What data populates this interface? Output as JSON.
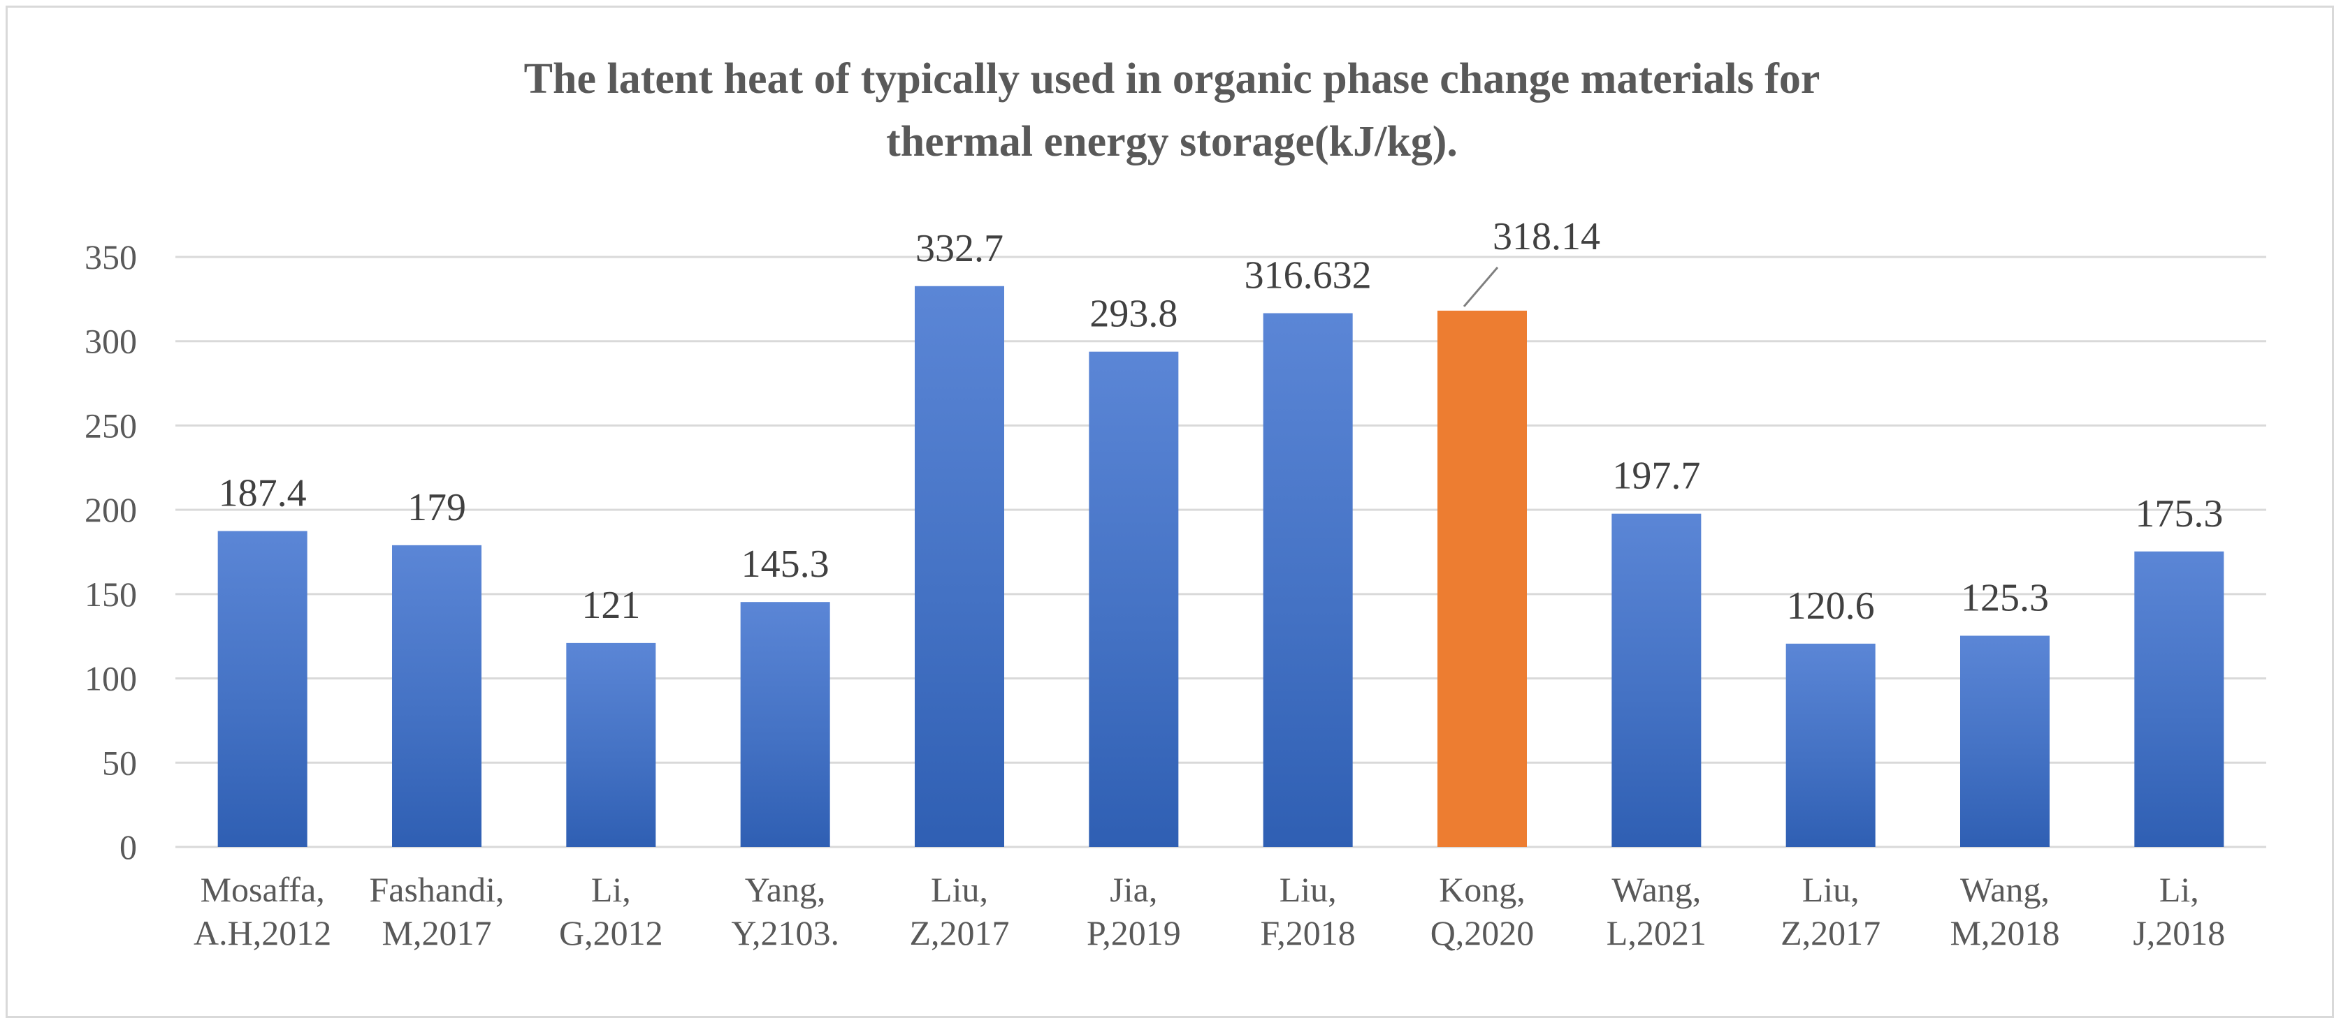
{
  "chart_data": {
    "type": "bar",
    "title": [
      "The latent heat of typically used in organic phase change materials for",
      "thermal energy storage(kJ/kg)."
    ],
    "xlabel": "",
    "ylabel": "",
    "ylim": [
      0,
      350
    ],
    "yticks": [
      0,
      50,
      100,
      150,
      200,
      250,
      300,
      350
    ],
    "grid": true,
    "legend": "none",
    "categories": [
      [
        "Mosaffa,",
        "A.H,2012"
      ],
      [
        "Fashandi,",
        "M,2017"
      ],
      [
        "Li,",
        "G,2012"
      ],
      [
        "Yang,",
        "Y,2103."
      ],
      [
        "Liu,",
        "Z,2017"
      ],
      [
        "Jia,",
        "P,2019"
      ],
      [
        "Liu,",
        "F,2018"
      ],
      [
        "Kong,",
        "Q,2020"
      ],
      [
        "Wang,",
        "L,2021"
      ],
      [
        "Liu,",
        "Z,2017"
      ],
      [
        "Wang,",
        "M,2018"
      ],
      [
        "Li,",
        "J,2018"
      ]
    ],
    "values": [
      187.4,
      179,
      121,
      145.3,
      332.7,
      293.8,
      316.632,
      318.14,
      197.7,
      120.6,
      125.3,
      175.3
    ],
    "value_labels": [
      "187.4",
      "179",
      "121",
      "145.3",
      "332.7",
      "293.8",
      "316.632",
      "318.14",
      "197.7",
      "120.6",
      "125.3",
      "175.3"
    ],
    "highlight_index": 7,
    "colors": {
      "bar": "#4472c4",
      "bar_light": "#5b86d6",
      "bar_dark": "#2f5fb3",
      "highlight": "#ed7d31",
      "grid": "#d9d9d9",
      "text": "#595959",
      "label": "#404040"
    }
  }
}
